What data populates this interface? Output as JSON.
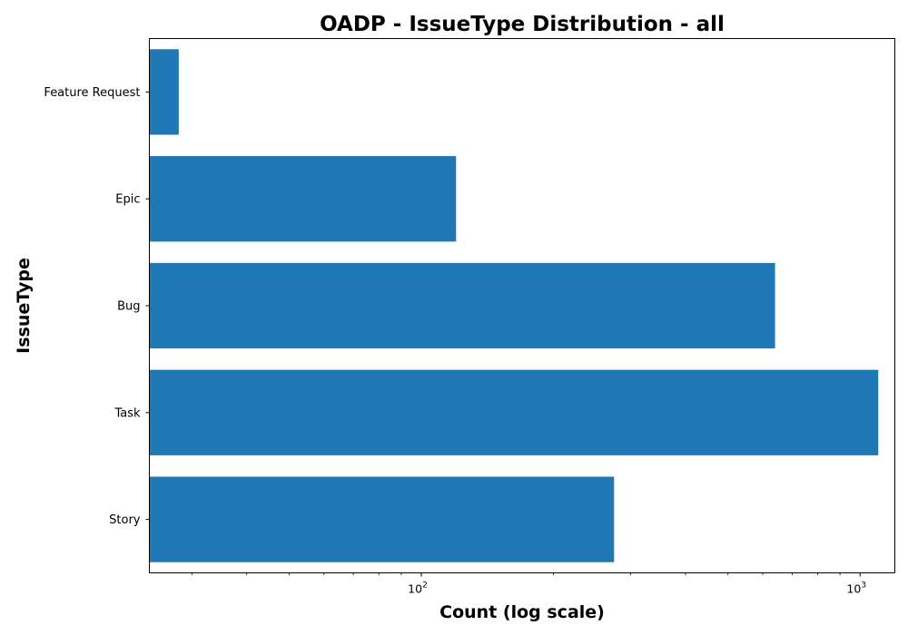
{
  "chart_data": {
    "type": "bar",
    "orientation": "horizontal",
    "title": "OADP - IssueType Distribution - all",
    "xlabel": "Count (log scale)",
    "ylabel": "IssueType",
    "x_scale": "log",
    "xlim": [
      24,
      1200
    ],
    "x_ticks": [
      {
        "value": 100,
        "base": "10",
        "exp": "2"
      },
      {
        "value": 1000,
        "base": "10",
        "exp": "3"
      }
    ],
    "categories": [
      "Feature Request",
      "Epic",
      "Bug",
      "Task",
      "Story"
    ],
    "values": [
      28,
      120,
      640,
      1100,
      275
    ],
    "bar_color": "#1f77b4",
    "grid": false,
    "legend": "none"
  }
}
